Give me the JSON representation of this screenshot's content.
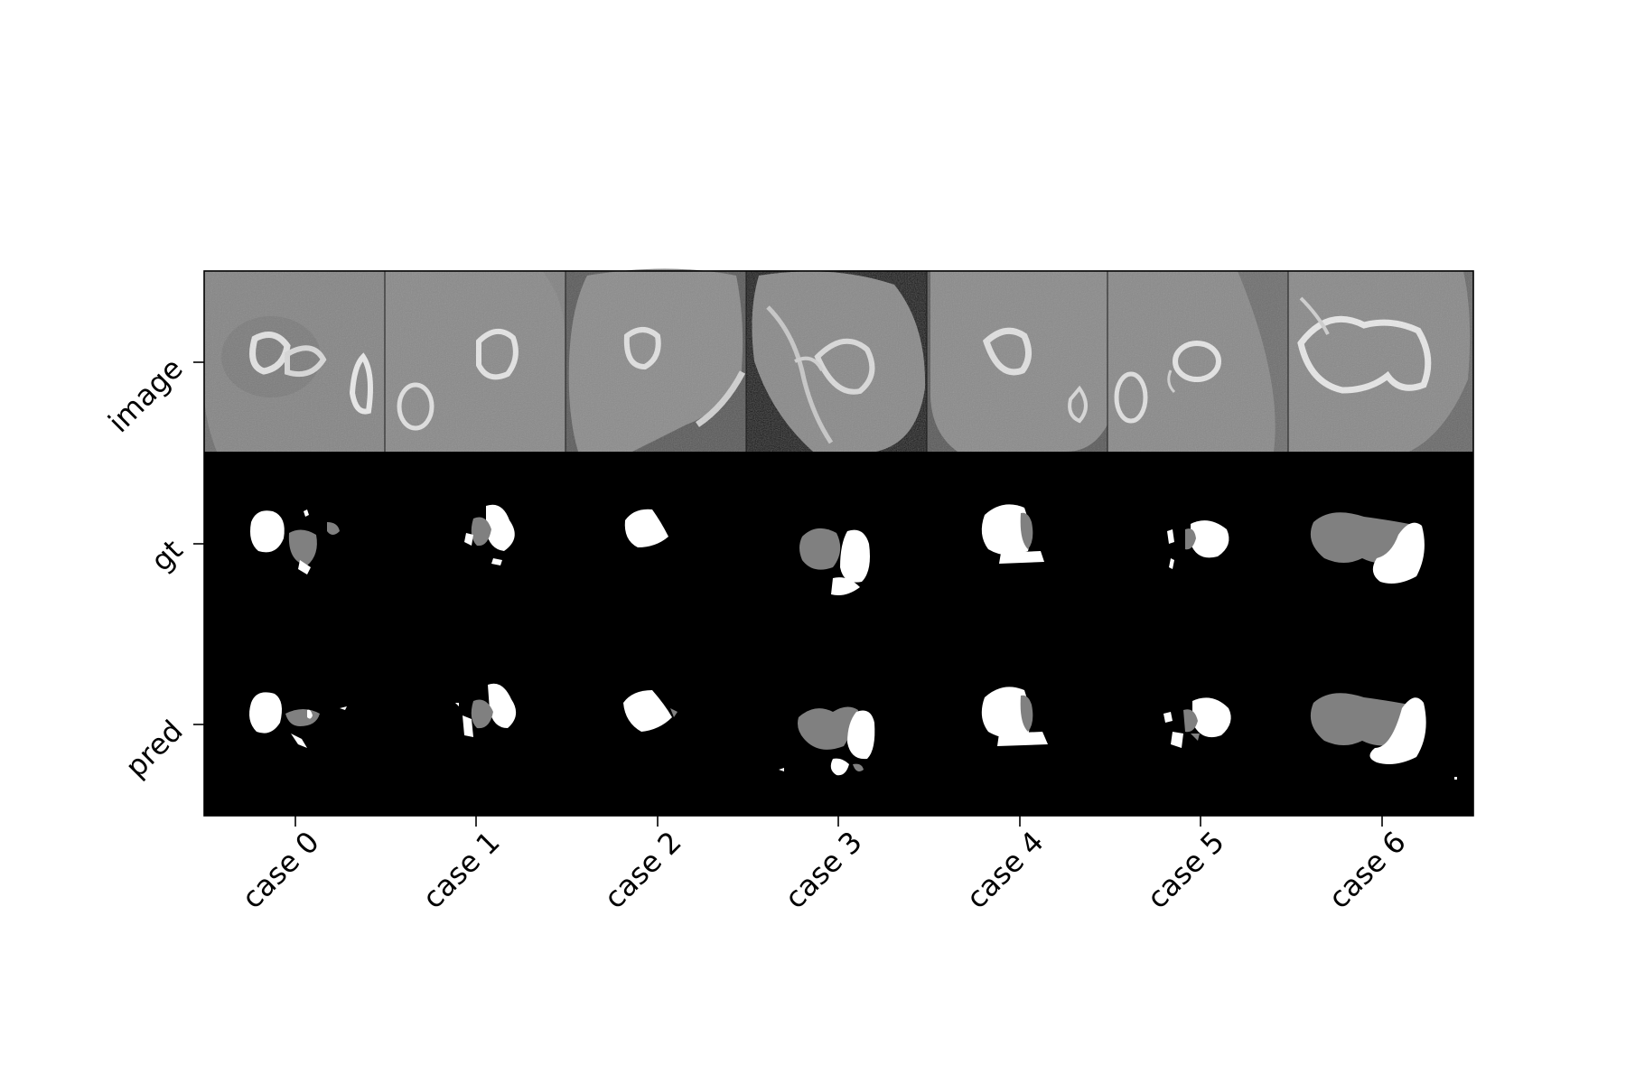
{
  "figure": {
    "row_labels": [
      "image",
      "gt",
      "pred"
    ],
    "col_labels": [
      "case 0",
      "case 1",
      "case 2",
      "case 3",
      "case 4",
      "case 5",
      "case 6"
    ]
  },
  "colors": {
    "ct_background": "#7a7a7a",
    "ct_body": "#8e8e8e",
    "bone": "#e6e6e6",
    "mask_background": "#000000",
    "label_1": "#ffffff",
    "label_2": "#808080"
  }
}
